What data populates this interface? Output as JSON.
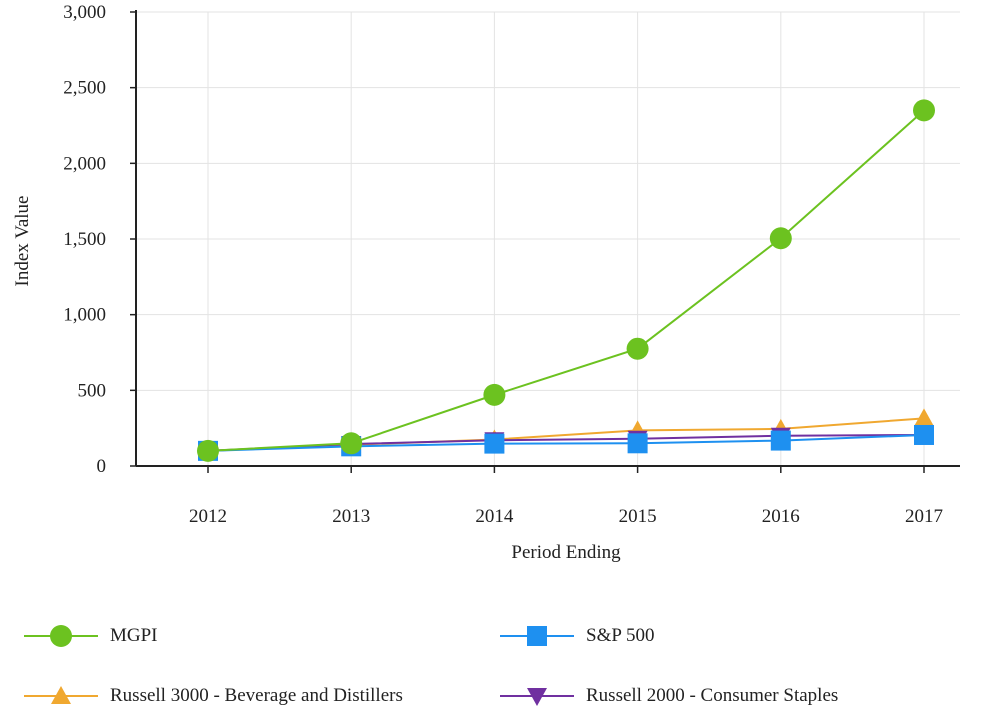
{
  "chart_data": {
    "type": "line",
    "title": "",
    "xlabel": "Period Ending",
    "ylabel": "Index Value",
    "x": [
      "2012",
      "2013",
      "2014",
      "2015",
      "2016",
      "2017"
    ],
    "ylim": [
      0,
      3000
    ],
    "yticks": [
      0,
      500,
      1000,
      1500,
      2000,
      2500,
      3000
    ],
    "ytick_labels": [
      "0",
      "500",
      "1,000",
      "1,500",
      "2,000",
      "2,500",
      "3,000"
    ],
    "grid": "on",
    "legend_position": "bottom",
    "series": [
      {
        "name": "MGPI",
        "values": [
          100,
          150,
          470,
          775,
          1505,
          2350
        ],
        "color": "#6cc220",
        "marker": "circle"
      },
      {
        "name": "S&P 500",
        "values": [
          100,
          130,
          148,
          150,
          168,
          205
        ],
        "color": "#1e90f0",
        "marker": "square"
      },
      {
        "name": "Russell 3000 - Beverage and Distillers",
        "values": [
          100,
          140,
          175,
          235,
          245,
          315
        ],
        "color": "#f0a830",
        "marker": "triangle-up"
      },
      {
        "name": "Russell 2000 - Consumer Staples",
        "values": [
          100,
          145,
          170,
          180,
          200,
          205
        ],
        "color": "#7030a0",
        "marker": "triangle-down"
      }
    ]
  }
}
